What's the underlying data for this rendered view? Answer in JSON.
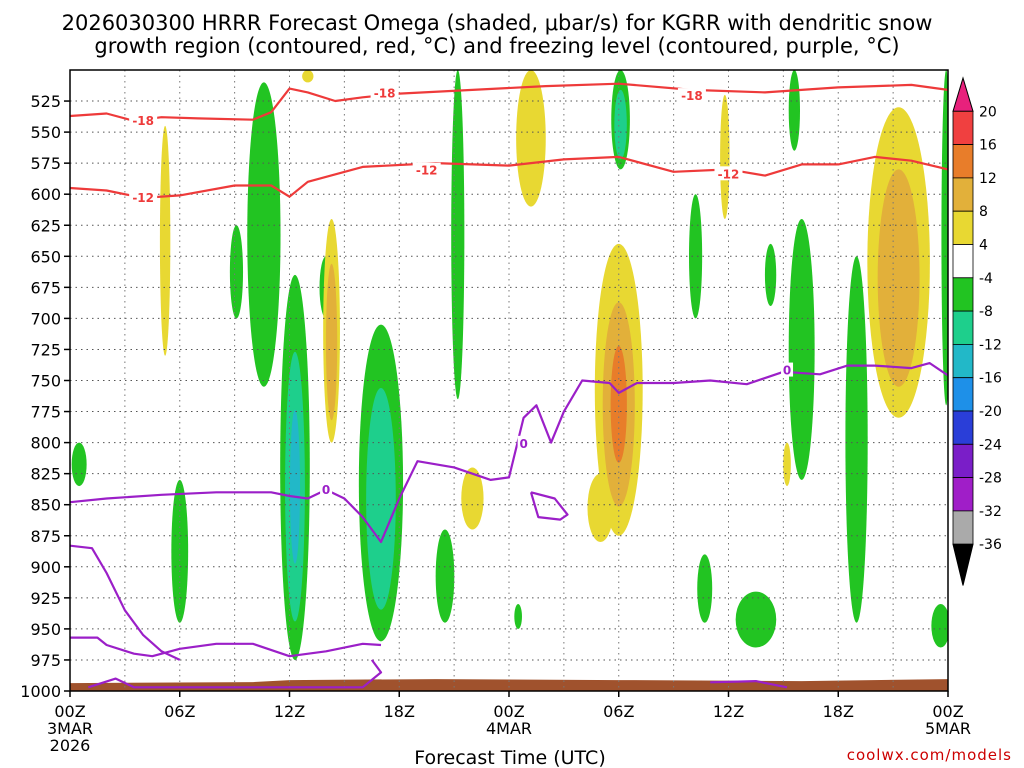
{
  "chart_data": {
    "type": "heatmap",
    "title_line1": "2026030300 HRRR Forecast Omega (shaded, μbar/s) for KGRR with dendritic snow",
    "title_line2": "growth region (contoured, red, °C) and freezing level (contoured, purple, °C)",
    "xlabel": "Forecast Time (UTC)",
    "credit": "coolwx.com/models",
    "x_range_hours": [
      0,
      48
    ],
    "y_range_mb": [
      500,
      1000
    ],
    "y_ticks": [
      525,
      550,
      575,
      600,
      625,
      650,
      675,
      700,
      725,
      750,
      775,
      800,
      825,
      850,
      875,
      900,
      925,
      950,
      975,
      1000
    ],
    "x_ticks": [
      {
        "hour": 0,
        "label": "00Z",
        "sub1": "3MAR",
        "sub2": "2026"
      },
      {
        "hour": 6,
        "label": "06Z",
        "sub1": "",
        "sub2": ""
      },
      {
        "hour": 12,
        "label": "12Z",
        "sub1": "",
        "sub2": ""
      },
      {
        "hour": 18,
        "label": "18Z",
        "sub1": "",
        "sub2": ""
      },
      {
        "hour": 24,
        "label": "00Z",
        "sub1": "4MAR",
        "sub2": ""
      },
      {
        "hour": 30,
        "label": "06Z",
        "sub1": "",
        "sub2": ""
      },
      {
        "hour": 36,
        "label": "12Z",
        "sub1": "",
        "sub2": ""
      },
      {
        "hour": 42,
        "label": "18Z",
        "sub1": "",
        "sub2": ""
      },
      {
        "hour": 48,
        "label": "00Z",
        "sub1": "5MAR",
        "sub2": ""
      }
    ],
    "colorbar": {
      "bins": [
        {
          "lo": 20,
          "hi": 24,
          "color": "#e8217c"
        },
        {
          "lo": 16,
          "hi": 20,
          "color": "#f04040"
        },
        {
          "lo": 12,
          "hi": 16,
          "color": "#e87d2a"
        },
        {
          "lo": 8,
          "hi": 12,
          "color": "#e2b03a"
        },
        {
          "lo": 4,
          "hi": 8,
          "color": "#e8d832"
        },
        {
          "lo": -4,
          "hi": 4,
          "color": "#ffffff"
        },
        {
          "lo": -8,
          "hi": -4,
          "color": "#22c422"
        },
        {
          "lo": -12,
          "hi": -8,
          "color": "#1ecf8c"
        },
        {
          "lo": -16,
          "hi": -12,
          "color": "#22b8c8"
        },
        {
          "lo": -20,
          "hi": -16,
          "color": "#1e90e8"
        },
        {
          "lo": -24,
          "hi": -20,
          "color": "#2a3ed8"
        },
        {
          "lo": -28,
          "hi": -24,
          "color": "#7a1ec8"
        },
        {
          "lo": -32,
          "hi": -28,
          "color": "#a01ec8"
        },
        {
          "lo": -36,
          "hi": -32,
          "color": "#aaaaaa"
        },
        {
          "lo": -40,
          "hi": -36,
          "color": "#000000"
        }
      ],
      "labels": [
        20,
        16,
        12,
        8,
        4,
        -4,
        -8,
        -12,
        -16,
        -20,
        -24,
        -28,
        -32,
        -36
      ]
    },
    "omega_features": [
      {
        "t": 0.5,
        "p0": 800,
        "p1": 835,
        "c": [
          0,
          0
        ],
        "w": 0.6,
        "bins": [
          -6
        ],
        "note": "thin green sliver near axis edge"
      },
      {
        "t": 5.2,
        "p0": 545,
        "p1": 730,
        "w": 0.35,
        "bins": [
          6
        ]
      },
      {
        "t": 6.0,
        "p0": 830,
        "p1": 945,
        "w": 0.7,
        "bins": [
          -6
        ]
      },
      {
        "t": 9.1,
        "p0": 625,
        "p1": 700,
        "w": 0.5,
        "bins": [
          -6
        ]
      },
      {
        "t": 10.6,
        "p0": 510,
        "p1": 755,
        "w": 1.6,
        "bins": [
          -6
        ]
      },
      {
        "t": 12.3,
        "p0": 665,
        "p1": 975,
        "w": 1.4,
        "bins": [
          -6,
          -10,
          -14
        ]
      },
      {
        "t": 13.0,
        "p0": 500,
        "p1": 510,
        "w": 0.4,
        "bins": [
          6
        ]
      },
      {
        "t": 14.0,
        "p0": 650,
        "p1": 700,
        "w": 0.5,
        "bins": [
          -6
        ]
      },
      {
        "t": 14.3,
        "p0": 620,
        "p1": 800,
        "w": 0.7,
        "bins": [
          6,
          10
        ]
      },
      {
        "t": 17.0,
        "p0": 705,
        "p1": 960,
        "w": 2.2,
        "bins": [
          -6,
          -10
        ]
      },
      {
        "t": 20.5,
        "p0": 870,
        "p1": 945,
        "w": 0.8,
        "bins": [
          -6
        ]
      },
      {
        "t": 21.2,
        "p0": 500,
        "p1": 765,
        "w": 0.5,
        "bins": [
          -6
        ]
      },
      {
        "t": 22.0,
        "p0": 820,
        "p1": 870,
        "w": 1.0,
        "bins": [
          6
        ]
      },
      {
        "t": 25.2,
        "p0": 500,
        "p1": 610,
        "w": 1.4,
        "bins": [
          6
        ]
      },
      {
        "t": 24.5,
        "p0": 930,
        "p1": 950,
        "w": 0.2,
        "bins": [
          -6
        ]
      },
      {
        "t": 29.0,
        "p0": 825,
        "p1": 880,
        "w": 1.2,
        "bins": [
          6
        ]
      },
      {
        "t": 30.0,
        "p0": 640,
        "p1": 875,
        "w": 2.4,
        "bins": [
          6,
          10,
          14
        ]
      },
      {
        "t": 30.1,
        "p0": 500,
        "p1": 580,
        "w": 0.8,
        "bins": [
          -6,
          -10
        ]
      },
      {
        "t": 34.2,
        "p0": 600,
        "p1": 700,
        "w": 0.5,
        "bins": [
          -6
        ]
      },
      {
        "t": 35.8,
        "p0": 520,
        "p1": 620,
        "w": 0.3,
        "bins": [
          6
        ]
      },
      {
        "t": 34.7,
        "p0": 890,
        "p1": 945,
        "w": 0.6,
        "bins": [
          -6
        ]
      },
      {
        "t": 37.5,
        "p0": 920,
        "p1": 965,
        "w": 2.0,
        "bins": [
          -6
        ]
      },
      {
        "t": 38.3,
        "p0": 640,
        "p1": 690,
        "w": 0.4,
        "bins": [
          -6
        ]
      },
      {
        "t": 39.2,
        "p0": 800,
        "p1": 835,
        "w": 0.2,
        "bins": [
          6
        ]
      },
      {
        "t": 39.6,
        "p0": 500,
        "p1": 565,
        "w": 0.4,
        "bins": [
          -6
        ]
      },
      {
        "t": 40.0,
        "p0": 620,
        "p1": 830,
        "w": 1.2,
        "bins": [
          -6
        ]
      },
      {
        "t": 43.0,
        "p0": 650,
        "p1": 945,
        "w": 1.0,
        "bins": [
          -6
        ]
      },
      {
        "t": 45.3,
        "p0": 530,
        "p1": 780,
        "w": 3.2,
        "bins": [
          6,
          10
        ]
      },
      {
        "t": 47.6,
        "p0": 930,
        "p1": 965,
        "w": 0.8,
        "bins": [
          -6
        ]
      },
      {
        "t": 47.9,
        "p0": 500,
        "p1": 770,
        "w": 0.3,
        "bins": [
          -6
        ]
      }
    ],
    "contours": {
      "dgz_minus18": {
        "color": "#ee3a3a",
        "label": "-18",
        "t": [
          0,
          2,
          3.5,
          5,
          7,
          10,
          11,
          12,
          13,
          14.5,
          16,
          18,
          22,
          26,
          30,
          34,
          38,
          42,
          46,
          48
        ],
        "p": [
          537,
          535,
          541,
          538,
          539,
          540,
          534,
          515,
          518,
          525,
          522,
          519,
          516,
          513,
          511,
          516,
          518,
          514,
          512,
          516
        ],
        "label_at": [
          {
            "t": 4,
            "p": 541
          },
          {
            "t": 17.2,
            "p": 519
          },
          {
            "t": 34,
            "p": 521
          }
        ]
      },
      "dgz_minus12": {
        "color": "#ee3a3a",
        "label": "-12",
        "t": [
          0,
          2,
          4,
          6,
          9,
          11,
          12,
          13,
          16,
          20,
          24,
          27,
          30,
          33,
          36,
          38,
          40,
          42,
          44,
          46,
          48
        ],
        "p": [
          595,
          597,
          603,
          601,
          593,
          593,
          602,
          590,
          578,
          575,
          577,
          572,
          570,
          582,
          580,
          585,
          576,
          576,
          570,
          573,
          580
        ],
        "label_at": [
          {
            "t": 4,
            "p": 603
          },
          {
            "t": 19.5,
            "p": 581
          },
          {
            "t": 36,
            "p": 584
          }
        ]
      },
      "freezing_level_0C_main": {
        "color": "#9b1fc8",
        "label": "0",
        "t": [
          0,
          2,
          5,
          8,
          11,
          12,
          13,
          14,
          15,
          16,
          17,
          18,
          19,
          21,
          22,
          23,
          24,
          24.8,
          25.5,
          26.3,
          27,
          28,
          29.5,
          30,
          31,
          33,
          35,
          37,
          39,
          41,
          42.5,
          44,
          46,
          47,
          48
        ],
        "p": [
          848,
          845,
          842,
          840,
          840,
          843,
          845,
          838,
          845,
          860,
          880,
          845,
          815,
          820,
          825,
          830,
          828,
          780,
          770,
          800,
          775,
          750,
          752,
          760,
          752,
          752,
          750,
          753,
          743,
          745,
          738,
          738,
          740,
          736,
          746
        ],
        "label_at": [
          {
            "t": 14.0,
            "p": 838
          },
          {
            "t": 39.2,
            "p": 742
          },
          {
            "t": 24.8,
            "p": 801
          }
        ]
      },
      "freezing_level_0C_lower": {
        "color": "#9b1fc8",
        "t": [
          0,
          1.5,
          2.0,
          3.5,
          4.5,
          6,
          8,
          10,
          12,
          14,
          16,
          17
        ],
        "p": [
          957,
          957,
          963,
          970,
          972,
          966,
          962,
          962,
          972,
          968,
          962,
          963
        ],
        "label_at": [
          {
            "t": 7.0,
            "p": 963
          }
        ]
      },
      "freezing_level_0C_left": {
        "color": "#9b1fc8",
        "t": [
          0,
          1.2,
          2,
          3,
          4,
          5,
          6
        ],
        "p": [
          883,
          885,
          905,
          935,
          955,
          968,
          975
        ]
      },
      "freezing_level_0C_sfc": {
        "color": "#9b1fc8",
        "t": [
          1.0,
          2.5,
          3.5,
          16,
          17,
          16.5
        ],
        "p": [
          997,
          990,
          997,
          997,
          985,
          975
        ]
      },
      "freezing_level_0C_blob": {
        "color": "#9b1fc8",
        "t": [
          25.2,
          26.5,
          27.2,
          26.8,
          25.6,
          25.2
        ],
        "p": [
          840,
          845,
          858,
          862,
          860,
          840
        ]
      },
      "freezing_level_0C_bottom": {
        "color": "#9b1fc8",
        "t": [
          35,
          37.5,
          39.2
        ],
        "p": [
          993,
          992,
          997
        ]
      }
    },
    "terrain": {
      "color": "#a0522d",
      "p_surface": 992
    }
  }
}
